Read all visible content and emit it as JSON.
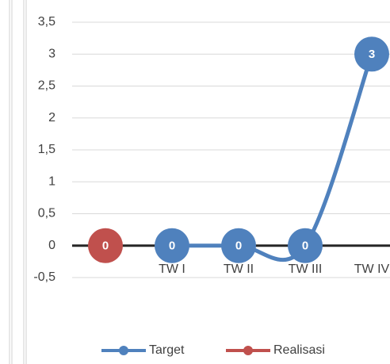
{
  "chart_data": {
    "type": "line",
    "categories": [
      null,
      "TW I",
      "TW II",
      "TW III",
      "TW IV"
    ],
    "series": [
      {
        "name": "Target",
        "color": "#4f81bd",
        "values": [
          null,
          0,
          0,
          0,
          3
        ]
      },
      {
        "name": "Realisasi",
        "color": "#c0504d",
        "values": [
          0,
          null,
          null,
          null,
          null
        ]
      }
    ],
    "ylim": [
      -0.5,
      3.5
    ],
    "yticks": [
      {
        "value": -0.5,
        "label": "-0,5"
      },
      0,
      {
        "value": 0.5,
        "label": "0,5"
      },
      1,
      {
        "value": 1.5,
        "label": "1,5"
      },
      2,
      {
        "value": 2.5,
        "label": "2,5"
      },
      3,
      {
        "value": 3.5,
        "label": "3,5"
      }
    ],
    "grid": true,
    "smooth": true,
    "legend": "bottom"
  }
}
